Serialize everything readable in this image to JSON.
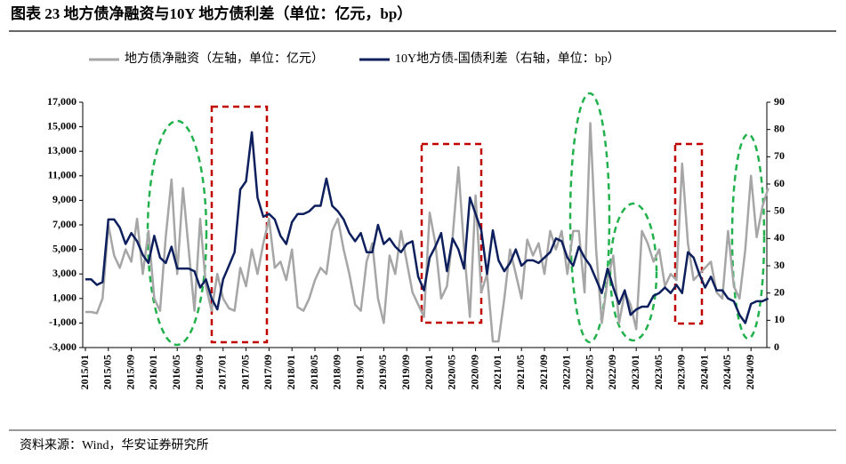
{
  "chart_data": {
    "type": "line",
    "title": "图表 23 地方债净融资与10Y 地方债利差（单位：亿元，bp）",
    "source": "资料来源：Wind，华安证券研究所",
    "categories": [
      "2015/01",
      null,
      null,
      null,
      "2015/05",
      null,
      null,
      null,
      "2015/09",
      null,
      null,
      null,
      "2016/01",
      null,
      null,
      null,
      "2016/05",
      null,
      null,
      null,
      "2016/09",
      null,
      null,
      null,
      "2017/01",
      null,
      null,
      null,
      "2017/05",
      null,
      null,
      null,
      "2017/09",
      null,
      null,
      null,
      "2018/01",
      null,
      null,
      null,
      "2018/05",
      null,
      null,
      null,
      "2018/09",
      null,
      null,
      null,
      "2019/01",
      null,
      null,
      null,
      "2019/05",
      null,
      null,
      null,
      "2019/09",
      null,
      null,
      null,
      "2020/01",
      null,
      null,
      null,
      "2020/05",
      null,
      null,
      null,
      "2020/09",
      null,
      null,
      null,
      "2021/01",
      null,
      null,
      null,
      "2021/05",
      null,
      null,
      null,
      "2021/09",
      null,
      null,
      null,
      "2022/01",
      null,
      null,
      null,
      "2022/05",
      null,
      null,
      null,
      "2022/09",
      null,
      null,
      null,
      "2023/01",
      null,
      null,
      null,
      "2023/05",
      null,
      null,
      null,
      "2023/09",
      null,
      null,
      null,
      "2024/01",
      null,
      null,
      null,
      "2024/05",
      null,
      null,
      null,
      "2024/09",
      null,
      null,
      null
    ],
    "series": [
      {
        "name": "地方债净融资（左轴，单位：亿元）",
        "color": "#a6a6a6",
        "axis": "y",
        "values": [
          -100,
          -100,
          -200,
          1000,
          7000,
          4500,
          3500,
          5000,
          4000,
          7500,
          3000,
          6500,
          1000,
          0,
          6000,
          10700,
          3000,
          10000,
          5000,
          0,
          7500,
          2000,
          0,
          3000,
          1000,
          200,
          0,
          3500,
          2000,
          5000,
          3000,
          5500,
          7500,
          3500,
          4000,
          2500,
          5000,
          300,
          0,
          1000,
          2500,
          3500,
          3000,
          6500,
          7500,
          5000,
          3000,
          500,
          0,
          4000,
          5500,
          1000,
          -1000,
          4500,
          3000,
          6500,
          4000,
          1500,
          500,
          -500,
          8000,
          5500,
          1000,
          2000,
          6000,
          11700,
          5000,
          -500,
          9400,
          1500,
          3000,
          -2500,
          -2500,
          1000,
          5000,
          3000,
          1000,
          5800,
          4500,
          5500,
          3000,
          6500,
          5000,
          6500,
          3000,
          6500,
          6500,
          1500,
          15300,
          5000,
          -1000,
          2500,
          4500,
          -1000,
          1500,
          500,
          -1500,
          6500,
          5500,
          4000,
          5000,
          2000,
          3000,
          2500,
          12000,
          5500,
          2500,
          3000,
          3500,
          4000,
          1500,
          1000,
          6500,
          2000,
          1000,
          5000,
          11000,
          6000,
          8500,
          10000
        ]
      },
      {
        "name": "10Y地方债-国债利差（右轴，单位：bp）",
        "color": "#0d1f5c",
        "axis": "y2",
        "values": [
          25,
          25,
          23,
          24,
          47,
          47,
          44,
          38,
          42,
          39,
          34,
          31,
          41,
          33,
          31,
          37,
          29,
          29,
          29,
          28,
          22,
          25,
          18,
          14,
          25,
          30,
          35,
          58,
          61,
          79,
          55,
          48,
          49,
          47,
          41,
          38,
          46,
          49,
          49,
          50,
          52,
          52,
          62,
          52,
          50,
          47,
          42,
          39,
          42,
          35,
          35,
          45,
          38,
          40,
          37,
          35,
          38,
          39,
          26,
          21,
          33,
          37,
          42,
          28,
          40,
          36,
          29,
          55,
          49,
          43,
          27,
          43,
          32,
          28,
          31,
          36,
          30,
          32,
          32,
          31,
          33,
          35,
          40,
          39,
          33,
          30,
          37,
          33,
          30,
          25,
          20,
          29,
          22,
          16,
          21,
          12,
          14,
          15,
          15,
          19,
          20,
          22,
          20,
          23,
          20,
          35,
          33,
          27,
          22,
          26,
          21,
          21,
          18,
          17,
          12,
          9,
          16,
          17,
          17,
          18
        ]
      }
    ],
    "ylim": [
      -3000,
      17000
    ],
    "yticks": [
      {
        "value": -3000,
        "label": "-3,000"
      },
      {
        "value": -1000,
        "label": "-1,000"
      },
      {
        "value": 1000,
        "label": "1,000"
      },
      {
        "value": 3000,
        "label": "3,000"
      },
      {
        "value": 5000,
        "label": "5,000"
      },
      {
        "value": 7000,
        "label": "7,000"
      },
      {
        "value": 9000,
        "label": "9,000"
      },
      {
        "value": 11000,
        "label": "11,000"
      },
      {
        "value": 13000,
        "label": "13,000"
      },
      {
        "value": 15000,
        "label": "15,000"
      },
      {
        "value": 17000,
        "label": "17,000"
      }
    ],
    "y2lim": [
      0,
      90
    ],
    "y2ticks": [
      0,
      10,
      20,
      30,
      40,
      50,
      60,
      70,
      80,
      90
    ],
    "legend": "top"
  }
}
